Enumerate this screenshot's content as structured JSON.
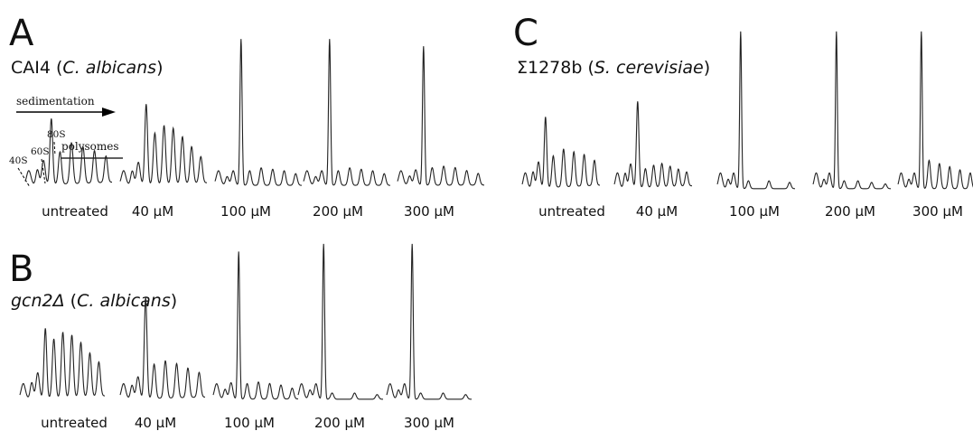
{
  "panels": [
    {
      "letter": "A",
      "strain_prefix": "CAI4 (",
      "strain_species": "C. albicans",
      "strain_suffix": ")",
      "conditions": [
        "untreated",
        "40 µM",
        "100 µM",
        "200 µM",
        "300 µM"
      ]
    },
    {
      "letter": "B",
      "strain_prefix": "",
      "strain_gene": "gcn2",
      "strain_delta": "Δ",
      "strain_open": " (",
      "strain_species": "C. albicans",
      "strain_suffix": ")",
      "conditions": [
        "untreated",
        "40 µM",
        "100 µM",
        "200 µM",
        "300 µM"
      ]
    },
    {
      "letter": "C",
      "strain_prefix": "Σ1278b (",
      "strain_species": "S. cerevisiae",
      "strain_suffix": ")",
      "conditions": [
        "untreated",
        "40 µM",
        "100 µM",
        "200 µM",
        "300 µM"
      ]
    }
  ],
  "annotations": {
    "sedimentation": "sedimentation",
    "peak_40S": "40S",
    "peak_60S": "60S",
    "peak_80S": "80S",
    "polysomes": "polysomes"
  },
  "chart_data": {
    "type": "line",
    "description_units": "relative absorbance vs sedimentation position (0–1)",
    "panels": [
      {
        "panel": "A",
        "profiles": [
          {
            "condition": "untreated",
            "peak_80S": 0.45,
            "polysome_peaks": [
              0.22,
              0.28,
              0.25,
              0.22,
              0.18
            ]
          },
          {
            "condition": "40 µM",
            "peak_80S": 0.55,
            "polysome_peaks": [
              0.35,
              0.4,
              0.38,
              0.32,
              0.25,
              0.18
            ]
          },
          {
            "condition": "100 µM",
            "peak_80S": 1.0,
            "polysome_peaks": [
              0.1,
              0.12,
              0.11,
              0.1,
              0.08
            ]
          },
          {
            "condition": "200 µM",
            "peak_80S": 1.0,
            "polysome_peaks": [
              0.1,
              0.12,
              0.11,
              0.1,
              0.08
            ]
          },
          {
            "condition": "300 µM",
            "peak_80S": 0.95,
            "polysome_peaks": [
              0.12,
              0.13,
              0.12,
              0.1,
              0.08
            ]
          }
        ]
      },
      {
        "panel": "B",
        "profiles": [
          {
            "condition": "untreated",
            "peak_80S": 0.45,
            "polysome_peaks": [
              0.38,
              0.42,
              0.4,
              0.35,
              0.28,
              0.22
            ]
          },
          {
            "condition": "40 µM",
            "peak_80S": 0.65,
            "polysome_peaks": [
              0.22,
              0.24,
              0.22,
              0.19,
              0.16
            ]
          },
          {
            "condition": "100 µM",
            "peak_80S": 0.95,
            "polysome_peaks": [
              0.1,
              0.11,
              0.1,
              0.09,
              0.07
            ]
          },
          {
            "condition": "200 µM",
            "peak_80S": 1.0,
            "polysome_peaks": [
              0.04,
              0.04,
              0.03
            ]
          },
          {
            "condition": "300 µM",
            "peak_80S": 1.0,
            "polysome_peaks": [
              0.04,
              0.04,
              0.03
            ]
          }
        ]
      },
      {
        "panel": "C",
        "profiles": [
          {
            "condition": "untreated",
            "peak_80S": 0.45,
            "polysome_peaks": [
              0.2,
              0.24,
              0.22,
              0.2,
              0.16
            ]
          },
          {
            "condition": "40 µM",
            "peak_80S": 0.55,
            "polysome_peaks": [
              0.12,
              0.14,
              0.15,
              0.13,
              0.11,
              0.09
            ]
          },
          {
            "condition": "100 µM",
            "peak_80S": 1.0,
            "polysome_peaks": [
              0.05,
              0.05,
              0.04
            ]
          },
          {
            "condition": "200 µM",
            "peak_80S": 1.0,
            "polysome_peaks": [
              0.05,
              0.05,
              0.04,
              0.03
            ]
          },
          {
            "condition": "300 µM",
            "peak_80S": 1.0,
            "polysome_peaks": [
              0.18,
              0.16,
              0.14,
              0.12,
              0.1
            ]
          }
        ]
      }
    ]
  }
}
